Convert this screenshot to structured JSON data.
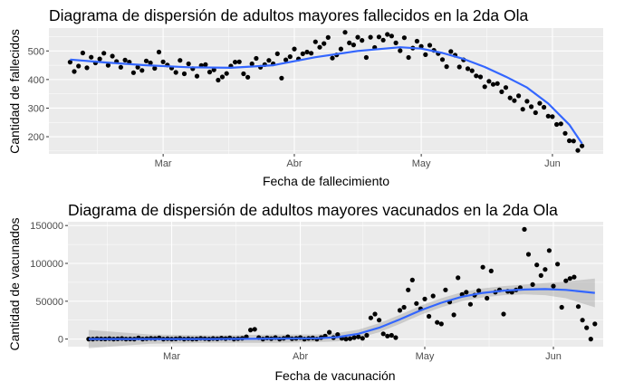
{
  "chart_data": [
    {
      "type": "scatter",
      "title": "Diagrama de dispersión de adultos mayores fallecidos en la 2da Ola",
      "xlabel": "Fecha de fallecimiento",
      "ylabel": "Cantidad de fallecidos",
      "x_type": "date",
      "xlim": [
        "2021-02-02",
        "2021-06-13"
      ],
      "ylim": [
        140,
        580
      ],
      "xticks": [
        {
          "date": "2021-03-01",
          "label": "Mar"
        },
        {
          "date": "2021-04-01",
          "label": "Abr"
        },
        {
          "date": "2021-05-01",
          "label": "May"
        },
        {
          "date": "2021-06-01",
          "label": "Jun"
        }
      ],
      "yticks": [
        200,
        300,
        400,
        500
      ],
      "grid": true,
      "smooth": "loess",
      "smooth_color": "#3366FF",
      "points": [
        [
          "2021-02-07",
          461
        ],
        [
          "2021-02-08",
          428
        ],
        [
          "2021-02-09",
          447
        ],
        [
          "2021-02-10",
          493
        ],
        [
          "2021-02-11",
          441
        ],
        [
          "2021-02-12",
          478
        ],
        [
          "2021-02-13",
          458
        ],
        [
          "2021-02-14",
          472
        ],
        [
          "2021-02-15",
          492
        ],
        [
          "2021-02-16",
          450
        ],
        [
          "2021-02-17",
          482
        ],
        [
          "2021-02-18",
          463
        ],
        [
          "2021-02-19",
          443
        ],
        [
          "2021-02-20",
          468
        ],
        [
          "2021-02-21",
          461
        ],
        [
          "2021-02-22",
          424
        ],
        [
          "2021-02-23",
          443
        ],
        [
          "2021-02-24",
          432
        ],
        [
          "2021-02-25",
          465
        ],
        [
          "2021-02-26",
          458
        ],
        [
          "2021-02-27",
          439
        ],
        [
          "2021-02-28",
          496
        ],
        [
          "2021-03-01",
          462
        ],
        [
          "2021-03-02",
          451
        ],
        [
          "2021-03-03",
          440
        ],
        [
          "2021-03-04",
          425
        ],
        [
          "2021-03-05",
          467
        ],
        [
          "2021-03-06",
          420
        ],
        [
          "2021-03-07",
          455
        ],
        [
          "2021-03-08",
          438
        ],
        [
          "2021-03-09",
          412
        ],
        [
          "2021-03-10",
          449
        ],
        [
          "2021-03-11",
          452
        ],
        [
          "2021-03-12",
          426
        ],
        [
          "2021-03-13",
          434
        ],
        [
          "2021-03-14",
          398
        ],
        [
          "2021-03-15",
          409
        ],
        [
          "2021-03-16",
          421
        ],
        [
          "2021-03-17",
          447
        ],
        [
          "2021-03-18",
          461
        ],
        [
          "2021-03-19",
          462
        ],
        [
          "2021-03-20",
          420
        ],
        [
          "2021-03-21",
          408
        ],
        [
          "2021-03-22",
          455
        ],
        [
          "2021-03-23",
          474
        ],
        [
          "2021-03-24",
          443
        ],
        [
          "2021-03-25",
          452
        ],
        [
          "2021-03-26",
          467
        ],
        [
          "2021-03-27",
          455
        ],
        [
          "2021-03-28",
          490
        ],
        [
          "2021-03-29",
          405
        ],
        [
          "2021-03-30",
          469
        ],
        [
          "2021-03-31",
          480
        ],
        [
          "2021-04-01",
          507
        ],
        [
          "2021-04-02",
          472
        ],
        [
          "2021-04-03",
          490
        ],
        [
          "2021-04-04",
          496
        ],
        [
          "2021-04-05",
          492
        ],
        [
          "2021-04-06",
          532
        ],
        [
          "2021-04-07",
          513
        ],
        [
          "2021-04-08",
          526
        ],
        [
          "2021-04-09",
          547
        ],
        [
          "2021-04-10",
          475
        ],
        [
          "2021-04-11",
          486
        ],
        [
          "2021-04-12",
          507
        ],
        [
          "2021-04-13",
          565
        ],
        [
          "2021-04-14",
          528
        ],
        [
          "2021-04-15",
          521
        ],
        [
          "2021-04-16",
          548
        ],
        [
          "2021-04-17",
          537
        ],
        [
          "2021-04-18",
          477
        ],
        [
          "2021-04-19",
          548
        ],
        [
          "2021-04-20",
          512
        ],
        [
          "2021-04-21",
          549
        ],
        [
          "2021-04-22",
          538
        ],
        [
          "2021-04-23",
          558
        ],
        [
          "2021-04-24",
          552
        ],
        [
          "2021-04-25",
          528
        ],
        [
          "2021-04-26",
          501
        ],
        [
          "2021-04-27",
          546
        ],
        [
          "2021-04-28",
          477
        ],
        [
          "2021-04-29",
          510
        ],
        [
          "2021-04-30",
          534
        ],
        [
          "2021-05-01",
          516
        ],
        [
          "2021-05-02",
          487
        ],
        [
          "2021-05-03",
          520
        ],
        [
          "2021-05-04",
          502
        ],
        [
          "2021-05-05",
          491
        ],
        [
          "2021-05-06",
          470
        ],
        [
          "2021-05-07",
          445
        ],
        [
          "2021-05-08",
          498
        ],
        [
          "2021-05-09",
          485
        ],
        [
          "2021-05-10",
          444
        ],
        [
          "2021-05-11",
          469
        ],
        [
          "2021-05-12",
          438
        ],
        [
          "2021-05-13",
          431
        ],
        [
          "2021-05-14",
          413
        ],
        [
          "2021-05-15",
          409
        ],
        [
          "2021-05-16",
          375
        ],
        [
          "2021-05-17",
          394
        ],
        [
          "2021-05-18",
          383
        ],
        [
          "2021-05-19",
          386
        ],
        [
          "2021-05-20",
          357
        ],
        [
          "2021-05-21",
          372
        ],
        [
          "2021-05-22",
          336
        ],
        [
          "2021-05-23",
          326
        ],
        [
          "2021-05-24",
          343
        ],
        [
          "2021-05-25",
          296
        ],
        [
          "2021-05-26",
          324
        ],
        [
          "2021-05-27",
          305
        ],
        [
          "2021-05-28",
          284
        ],
        [
          "2021-05-29",
          317
        ],
        [
          "2021-05-30",
          303
        ],
        [
          "2021-05-31",
          272
        ],
        [
          "2021-06-01",
          270
        ],
        [
          "2021-06-02",
          243
        ],
        [
          "2021-06-03",
          245
        ],
        [
          "2021-06-04",
          212
        ],
        [
          "2021-06-05",
          186
        ],
        [
          "2021-06-06",
          185
        ],
        [
          "2021-06-07",
          152
        ],
        [
          "2021-06-08",
          168
        ]
      ],
      "trend": [
        [
          "2021-02-07",
          470
        ],
        [
          "2021-02-15",
          460
        ],
        [
          "2021-02-25",
          450
        ],
        [
          "2021-03-07",
          443
        ],
        [
          "2021-03-17",
          441
        ],
        [
          "2021-03-27",
          450
        ],
        [
          "2021-04-06",
          478
        ],
        [
          "2021-04-16",
          500
        ],
        [
          "2021-04-26",
          513
        ],
        [
          "2021-05-01",
          508
        ],
        [
          "2021-05-06",
          493
        ],
        [
          "2021-05-11",
          472
        ],
        [
          "2021-05-16",
          444
        ],
        [
          "2021-05-21",
          410
        ],
        [
          "2021-05-26",
          372
        ],
        [
          "2021-05-31",
          316
        ],
        [
          "2021-06-05",
          242
        ],
        [
          "2021-06-08",
          176
        ]
      ]
    },
    {
      "type": "scatter",
      "title": "Diagrama de dispersión de adultos mayores vacunados en la 2da Ola",
      "xlabel": "Fecha de vacunación",
      "ylabel": "Cantidad de vacunados",
      "x_type": "date",
      "xlim": [
        "2021-02-04",
        "2021-06-13"
      ],
      "ylim": [
        -10000,
        155000
      ],
      "xticks": [
        {
          "date": "2021-03-01",
          "label": "Mar"
        },
        {
          "date": "2021-04-01",
          "label": "Abr"
        },
        {
          "date": "2021-05-01",
          "label": "May"
        },
        {
          "date": "2021-06-01",
          "label": "Jun"
        }
      ],
      "yticks": [
        0,
        50000,
        100000,
        150000
      ],
      "grid": true,
      "smooth": "loess",
      "smooth_color": "#3366FF",
      "points": [
        [
          "2021-02-09",
          0
        ],
        [
          "2021-02-10",
          0
        ],
        [
          "2021-02-11",
          500
        ],
        [
          "2021-02-12",
          300
        ],
        [
          "2021-02-13",
          200
        ],
        [
          "2021-02-14",
          600
        ],
        [
          "2021-02-15",
          0
        ],
        [
          "2021-02-16",
          300
        ],
        [
          "2021-02-17",
          800
        ],
        [
          "2021-02-18",
          0
        ],
        [
          "2021-02-19",
          200
        ],
        [
          "2021-02-20",
          0
        ],
        [
          "2021-02-21",
          1500
        ],
        [
          "2021-02-22",
          0
        ],
        [
          "2021-02-23",
          500
        ],
        [
          "2021-02-24",
          1000
        ],
        [
          "2021-02-25",
          600
        ],
        [
          "2021-02-26",
          1500
        ],
        [
          "2021-02-27",
          0
        ],
        [
          "2021-02-28",
          500
        ],
        [
          "2021-03-01",
          0
        ],
        [
          "2021-03-02",
          300
        ],
        [
          "2021-03-03",
          1000
        ],
        [
          "2021-03-04",
          0
        ],
        [
          "2021-03-05",
          500
        ],
        [
          "2021-03-06",
          0
        ],
        [
          "2021-03-07",
          200
        ],
        [
          "2021-03-08",
          1000
        ],
        [
          "2021-03-09",
          500
        ],
        [
          "2021-03-10",
          0
        ],
        [
          "2021-03-11",
          800
        ],
        [
          "2021-03-12",
          300
        ],
        [
          "2021-03-13",
          1200
        ],
        [
          "2021-03-14",
          600
        ],
        [
          "2021-03-15",
          1500
        ],
        [
          "2021-03-16",
          0
        ],
        [
          "2021-03-17",
          500
        ],
        [
          "2021-03-18",
          1000
        ],
        [
          "2021-03-19",
          3000
        ],
        [
          "2021-03-20",
          12000
        ],
        [
          "2021-03-21",
          13000
        ],
        [
          "2021-03-22",
          2000
        ],
        [
          "2021-03-23",
          0
        ],
        [
          "2021-03-24",
          1500
        ],
        [
          "2021-03-25",
          500
        ],
        [
          "2021-03-26",
          2000
        ],
        [
          "2021-03-27",
          0
        ],
        [
          "2021-03-28",
          1000
        ],
        [
          "2021-03-29",
          3000
        ],
        [
          "2021-03-30",
          500
        ],
        [
          "2021-03-31",
          1000
        ],
        [
          "2021-04-01",
          2000
        ],
        [
          "2021-04-02",
          0
        ],
        [
          "2021-04-03",
          1000
        ],
        [
          "2021-04-04",
          1500
        ],
        [
          "2021-04-05",
          0
        ],
        [
          "2021-04-06",
          2000
        ],
        [
          "2021-04-07",
          4000
        ],
        [
          "2021-04-08",
          9000
        ],
        [
          "2021-04-09",
          2000
        ],
        [
          "2021-04-10",
          6000
        ],
        [
          "2021-04-11",
          1000
        ],
        [
          "2021-04-12",
          0
        ],
        [
          "2021-04-13",
          500
        ],
        [
          "2021-04-14",
          2000
        ],
        [
          "2021-04-15",
          3000
        ],
        [
          "2021-04-16",
          1000
        ],
        [
          "2021-04-17",
          5000
        ],
        [
          "2021-04-18",
          28000
        ],
        [
          "2021-04-19",
          33000
        ],
        [
          "2021-04-20",
          25000
        ],
        [
          "2021-04-21",
          7000
        ],
        [
          "2021-04-22",
          4000
        ],
        [
          "2021-04-23",
          5000
        ],
        [
          "2021-04-24",
          2000
        ],
        [
          "2021-04-25",
          38000
        ],
        [
          "2021-04-26",
          42000
        ],
        [
          "2021-04-27",
          65000
        ],
        [
          "2021-04-28",
          78000
        ],
        [
          "2021-04-29",
          47000
        ],
        [
          "2021-04-30",
          40000
        ],
        [
          "2021-05-01",
          53000
        ],
        [
          "2021-05-02",
          30000
        ],
        [
          "2021-05-03",
          57000
        ],
        [
          "2021-05-04",
          22000
        ],
        [
          "2021-05-05",
          20000
        ],
        [
          "2021-05-06",
          65000
        ],
        [
          "2021-05-07",
          49000
        ],
        [
          "2021-05-08",
          32000
        ],
        [
          "2021-05-09",
          81000
        ],
        [
          "2021-05-10",
          59000
        ],
        [
          "2021-05-11",
          62000
        ],
        [
          "2021-05-12",
          46000
        ],
        [
          "2021-05-13",
          58000
        ],
        [
          "2021-05-14",
          64000
        ],
        [
          "2021-05-15",
          95000
        ],
        [
          "2021-05-16",
          54000
        ],
        [
          "2021-05-17",
          90000
        ],
        [
          "2021-05-18",
          62000
        ],
        [
          "2021-05-19",
          65000
        ],
        [
          "2021-05-20",
          33000
        ],
        [
          "2021-05-21",
          63000
        ],
        [
          "2021-05-22",
          62000
        ],
        [
          "2021-05-23",
          65000
        ],
        [
          "2021-05-24",
          68000
        ],
        [
          "2021-05-25",
          145000
        ],
        [
          "2021-05-26",
          112000
        ],
        [
          "2021-05-27",
          72000
        ],
        [
          "2021-05-28",
          98000
        ],
        [
          "2021-05-29",
          84000
        ],
        [
          "2021-05-30",
          92000
        ],
        [
          "2021-05-31",
          117000
        ],
        [
          "2021-06-01",
          70000
        ],
        [
          "2021-06-02",
          99000
        ],
        [
          "2021-06-03",
          42000
        ],
        [
          "2021-06-04",
          77000
        ],
        [
          "2021-06-05",
          80000
        ],
        [
          "2021-06-06",
          82000
        ],
        [
          "2021-06-07",
          43000
        ],
        [
          "2021-06-08",
          25000
        ],
        [
          "2021-06-09",
          15000
        ],
        [
          "2021-06-10",
          0
        ],
        [
          "2021-06-11",
          20000
        ]
      ],
      "trend": [
        [
          "2021-02-09",
          0
        ],
        [
          "2021-02-24",
          0
        ],
        [
          "2021-03-11",
          0
        ],
        [
          "2021-03-26",
          600
        ],
        [
          "2021-04-05",
          1000
        ],
        [
          "2021-04-10",
          2500
        ],
        [
          "2021-04-15",
          7000
        ],
        [
          "2021-04-20",
          15000
        ],
        [
          "2021-04-25",
          26000
        ],
        [
          "2021-04-30",
          38000
        ],
        [
          "2021-05-05",
          48000
        ],
        [
          "2021-05-10",
          56000
        ],
        [
          "2021-05-15",
          61000
        ],
        [
          "2021-05-20",
          64000
        ],
        [
          "2021-05-25",
          65500
        ],
        [
          "2021-05-30",
          66000
        ],
        [
          "2021-06-04",
          65000
        ],
        [
          "2021-06-11",
          61000
        ]
      ],
      "band": [
        [
          "2021-02-09",
          -12000,
          12000
        ],
        [
          "2021-02-24",
          -6000,
          6000
        ],
        [
          "2021-03-11",
          -5000,
          5000
        ],
        [
          "2021-03-26",
          -5000,
          6000
        ],
        [
          "2021-04-05",
          -4000,
          6000
        ],
        [
          "2021-04-10",
          -3000,
          8000
        ],
        [
          "2021-04-15",
          1500,
          12500
        ],
        [
          "2021-04-20",
          9000,
          21000
        ],
        [
          "2021-04-25",
          20000,
          32000
        ],
        [
          "2021-04-30",
          32000,
          44000
        ],
        [
          "2021-05-05",
          42000,
          54000
        ],
        [
          "2021-05-10",
          50000,
          62000
        ],
        [
          "2021-05-15",
          55000,
          67000
        ],
        [
          "2021-05-20",
          58000,
          70000
        ],
        [
          "2021-05-25",
          59000,
          72000
        ],
        [
          "2021-05-30",
          58000,
          74000
        ],
        [
          "2021-06-04",
          54000,
          76000
        ],
        [
          "2021-06-11",
          42000,
          80000
        ]
      ]
    }
  ]
}
